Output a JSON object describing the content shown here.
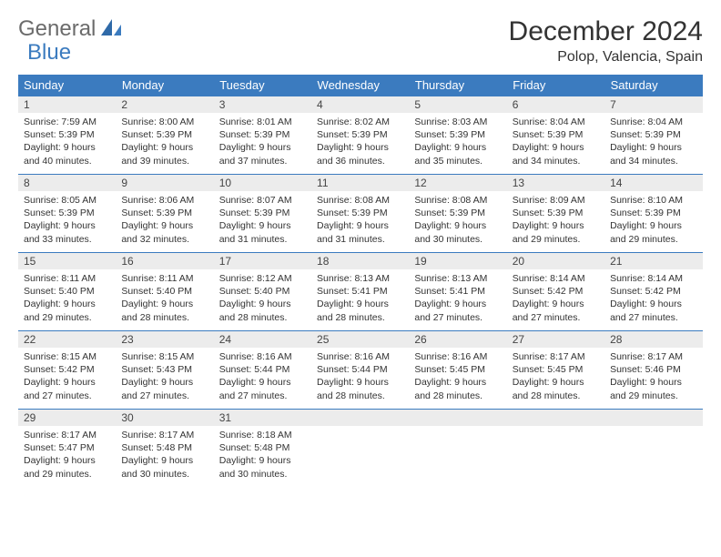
{
  "logo": {
    "part1": "General",
    "part2": "Blue"
  },
  "title": "December 2024",
  "location": "Polop, Valencia, Spain",
  "colors": {
    "header_bg": "#3b7bbf",
    "header_fg": "#ffffff",
    "daynum_bg": "#ececec",
    "border": "#3b7bbf",
    "text": "#333333",
    "logo_gray": "#6b6b6b",
    "logo_blue": "#3b7bbf"
  },
  "day_headers": [
    "Sunday",
    "Monday",
    "Tuesday",
    "Wednesday",
    "Thursday",
    "Friday",
    "Saturday"
  ],
  "weeks": [
    [
      {
        "n": "1",
        "sr": "7:59 AM",
        "ss": "5:39 PM",
        "dl": "9 hours and 40 minutes."
      },
      {
        "n": "2",
        "sr": "8:00 AM",
        "ss": "5:39 PM",
        "dl": "9 hours and 39 minutes."
      },
      {
        "n": "3",
        "sr": "8:01 AM",
        "ss": "5:39 PM",
        "dl": "9 hours and 37 minutes."
      },
      {
        "n": "4",
        "sr": "8:02 AM",
        "ss": "5:39 PM",
        "dl": "9 hours and 36 minutes."
      },
      {
        "n": "5",
        "sr": "8:03 AM",
        "ss": "5:39 PM",
        "dl": "9 hours and 35 minutes."
      },
      {
        "n": "6",
        "sr": "8:04 AM",
        "ss": "5:39 PM",
        "dl": "9 hours and 34 minutes."
      },
      {
        "n": "7",
        "sr": "8:04 AM",
        "ss": "5:39 PM",
        "dl": "9 hours and 34 minutes."
      }
    ],
    [
      {
        "n": "8",
        "sr": "8:05 AM",
        "ss": "5:39 PM",
        "dl": "9 hours and 33 minutes."
      },
      {
        "n": "9",
        "sr": "8:06 AM",
        "ss": "5:39 PM",
        "dl": "9 hours and 32 minutes."
      },
      {
        "n": "10",
        "sr": "8:07 AM",
        "ss": "5:39 PM",
        "dl": "9 hours and 31 minutes."
      },
      {
        "n": "11",
        "sr": "8:08 AM",
        "ss": "5:39 PM",
        "dl": "9 hours and 31 minutes."
      },
      {
        "n": "12",
        "sr": "8:08 AM",
        "ss": "5:39 PM",
        "dl": "9 hours and 30 minutes."
      },
      {
        "n": "13",
        "sr": "8:09 AM",
        "ss": "5:39 PM",
        "dl": "9 hours and 29 minutes."
      },
      {
        "n": "14",
        "sr": "8:10 AM",
        "ss": "5:39 PM",
        "dl": "9 hours and 29 minutes."
      }
    ],
    [
      {
        "n": "15",
        "sr": "8:11 AM",
        "ss": "5:40 PM",
        "dl": "9 hours and 29 minutes."
      },
      {
        "n": "16",
        "sr": "8:11 AM",
        "ss": "5:40 PM",
        "dl": "9 hours and 28 minutes."
      },
      {
        "n": "17",
        "sr": "8:12 AM",
        "ss": "5:40 PM",
        "dl": "9 hours and 28 minutes."
      },
      {
        "n": "18",
        "sr": "8:13 AM",
        "ss": "5:41 PM",
        "dl": "9 hours and 28 minutes."
      },
      {
        "n": "19",
        "sr": "8:13 AM",
        "ss": "5:41 PM",
        "dl": "9 hours and 27 minutes."
      },
      {
        "n": "20",
        "sr": "8:14 AM",
        "ss": "5:42 PM",
        "dl": "9 hours and 27 minutes."
      },
      {
        "n": "21",
        "sr": "8:14 AM",
        "ss": "5:42 PM",
        "dl": "9 hours and 27 minutes."
      }
    ],
    [
      {
        "n": "22",
        "sr": "8:15 AM",
        "ss": "5:42 PM",
        "dl": "9 hours and 27 minutes."
      },
      {
        "n": "23",
        "sr": "8:15 AM",
        "ss": "5:43 PM",
        "dl": "9 hours and 27 minutes."
      },
      {
        "n": "24",
        "sr": "8:16 AM",
        "ss": "5:44 PM",
        "dl": "9 hours and 27 minutes."
      },
      {
        "n": "25",
        "sr": "8:16 AM",
        "ss": "5:44 PM",
        "dl": "9 hours and 28 minutes."
      },
      {
        "n": "26",
        "sr": "8:16 AM",
        "ss": "5:45 PM",
        "dl": "9 hours and 28 minutes."
      },
      {
        "n": "27",
        "sr": "8:17 AM",
        "ss": "5:45 PM",
        "dl": "9 hours and 28 minutes."
      },
      {
        "n": "28",
        "sr": "8:17 AM",
        "ss": "5:46 PM",
        "dl": "9 hours and 29 minutes."
      }
    ],
    [
      {
        "n": "29",
        "sr": "8:17 AM",
        "ss": "5:47 PM",
        "dl": "9 hours and 29 minutes."
      },
      {
        "n": "30",
        "sr": "8:17 AM",
        "ss": "5:48 PM",
        "dl": "9 hours and 30 minutes."
      },
      {
        "n": "31",
        "sr": "8:18 AM",
        "ss": "5:48 PM",
        "dl": "9 hours and 30 minutes."
      },
      {
        "empty": true
      },
      {
        "empty": true
      },
      {
        "empty": true
      },
      {
        "empty": true
      }
    ]
  ],
  "labels": {
    "sunrise": "Sunrise:",
    "sunset": "Sunset:",
    "daylight": "Daylight:"
  }
}
